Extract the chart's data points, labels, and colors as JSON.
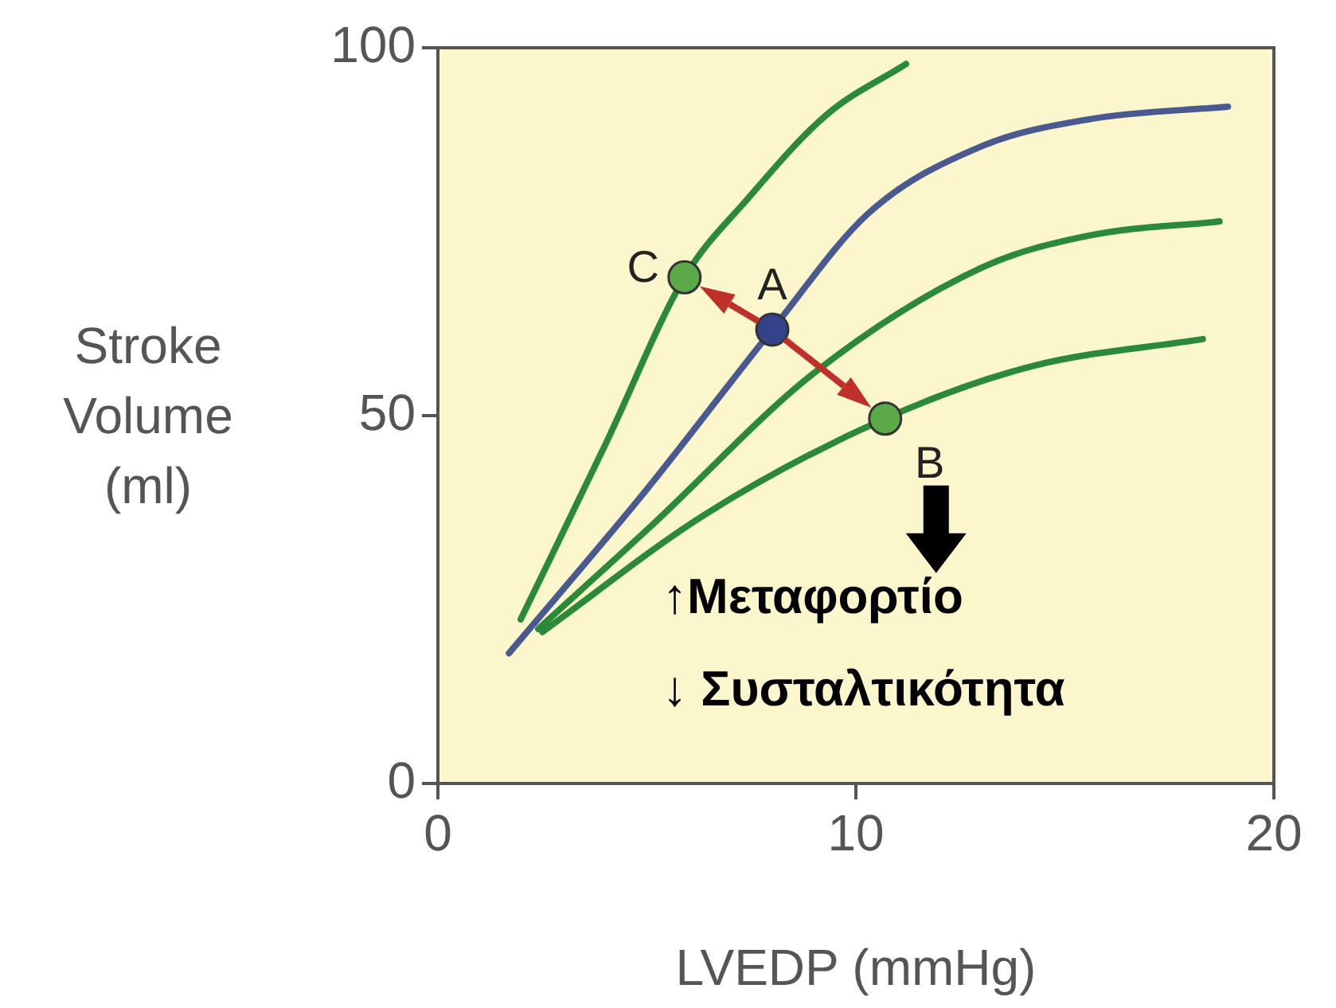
{
  "chart_data": {
    "type": "line",
    "xlabel": "LVEDP (mmHg)",
    "ylabel": "Stroke Volume (ml)",
    "xlim": [
      0,
      20
    ],
    "xticks": [
      0,
      10,
      20
    ],
    "ylim": [
      0,
      100
    ],
    "yticks": [
      0,
      50,
      100
    ],
    "legend": false,
    "marker": "none",
    "series": [
      {
        "color": "#2a8a3a",
        "x": [
          1.98,
          4.0,
          5.9,
          7.4,
          9.3,
          11.2
        ],
        "values": [
          22.3,
          46,
          68.8,
          79.4,
          90.9,
          97.8
        ]
      },
      {
        "color": "#4a5a90",
        "x": [
          1.7,
          5.0,
          8.0,
          10.3,
          13.0,
          15.6,
          18.9
        ],
        "values": [
          17.7,
          40,
          61.7,
          77.5,
          86.6,
          90.3,
          92.0
        ]
      },
      {
        "color": "#2a8a3a",
        "x": [
          2.4,
          5.1,
          9.0,
          13.0,
          15.6,
          18.7
        ],
        "values": [
          21,
          35,
          55.8,
          70.1,
          74.5,
          76.4
        ]
      },
      {
        "color": "#2a8a3a",
        "x": [
          2.5,
          6.4,
          10.7,
          14.2,
          18.3
        ],
        "values": [
          20.6,
          36.6,
          49.6,
          56.7,
          60.4
        ]
      },
      {
        "type": "scatter",
        "marker": "circle",
        "x": [
          5.9,
          8.0,
          10.7
        ],
        "values": [
          68.8,
          61.7,
          49.6
        ],
        "colors": [
          "#5aaa4a",
          "#34428a",
          "#5aaa4a"
        ]
      }
    ],
    "annotations": [
      "C",
      "A",
      "B",
      "↑Μεταφορτίο",
      "↓ Συσταλτικότητα"
    ]
  }
}
